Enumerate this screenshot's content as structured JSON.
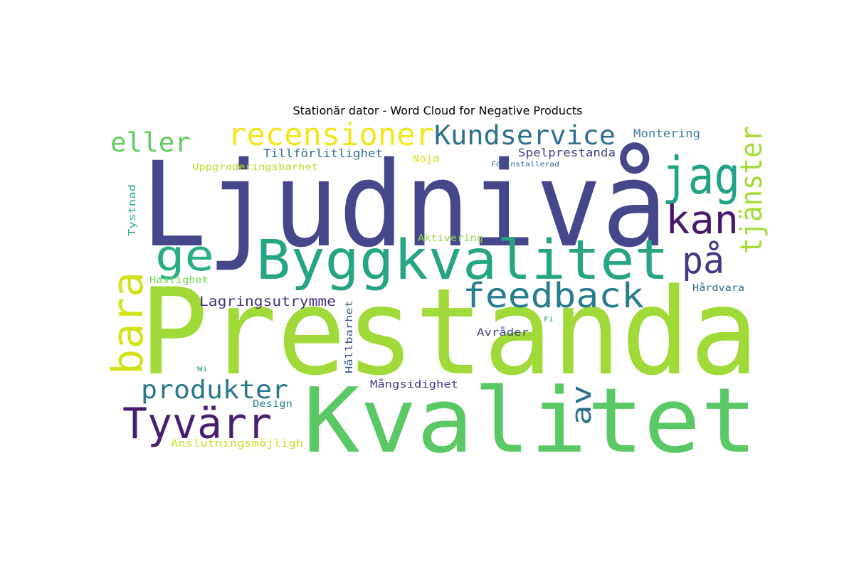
{
  "title": "Stationär dator - Word Cloud for Negative Products",
  "chart_data": {
    "type": "wordcloud",
    "words": [
      {
        "text": "Prestanda",
        "color": "#a0da39"
      },
      {
        "text": "Ljudnivå",
        "color": "#46468a"
      },
      {
        "text": "Kvalitet",
        "color": "#5ac864"
      },
      {
        "text": "Byggkvalitet",
        "color": "#25a584"
      },
      {
        "text": "recensioner",
        "color": "#f3e51e"
      },
      {
        "text": "Kundservice",
        "color": "#2d708e"
      },
      {
        "text": "jag",
        "color": "#20a386"
      },
      {
        "text": "kan",
        "color": "#48186a"
      },
      {
        "text": "tjänster",
        "color": "#a5db36"
      },
      {
        "text": "eller",
        "color": "#65cb5e"
      },
      {
        "text": "ge",
        "color": "#29af7f"
      },
      {
        "text": "på",
        "color": "#453781"
      },
      {
        "text": "feedback",
        "color": "#287d8e"
      },
      {
        "text": "bara",
        "color": "#d2e21b"
      },
      {
        "text": "produkter",
        "color": "#2a788e"
      },
      {
        "text": "Tyvärr",
        "color": "#481f70"
      },
      {
        "text": "av",
        "color": "#2c728e"
      },
      {
        "text": "Lagringsutrymme",
        "color": "#46307e"
      },
      {
        "text": "Montering",
        "color": "#3e7a99"
      },
      {
        "text": "Tillförlitlighet",
        "color": "#2f6b8e"
      },
      {
        "text": "Spelprestanda",
        "color": "#414487"
      },
      {
        "text": "Uppgraderingsbarhet",
        "color": "#b5de2b"
      },
      {
        "text": "Nöjd",
        "color": "#d8e219"
      },
      {
        "text": "Förinstallerad",
        "color": "#355f8d"
      },
      {
        "text": "Tystnad",
        "color": "#2ab07f"
      },
      {
        "text": "Aktivering",
        "color": "#8ed645"
      },
      {
        "text": "Hastighet",
        "color": "#7ad151"
      },
      {
        "text": "Hårdvara",
        "color": "#31688e"
      },
      {
        "text": "Hållbarhet",
        "color": "#3b528b"
      },
      {
        "text": "Avråder",
        "color": "#414487"
      },
      {
        "text": "Fi",
        "color": "#21918c"
      },
      {
        "text": "Wi",
        "color": "#1f9e89"
      },
      {
        "text": "Mångsidighet",
        "color": "#443a83"
      },
      {
        "text": "Design",
        "color": "#277f8e"
      },
      {
        "text": "Anslutningsmöjligh",
        "color": "#c0df25"
      }
    ]
  }
}
